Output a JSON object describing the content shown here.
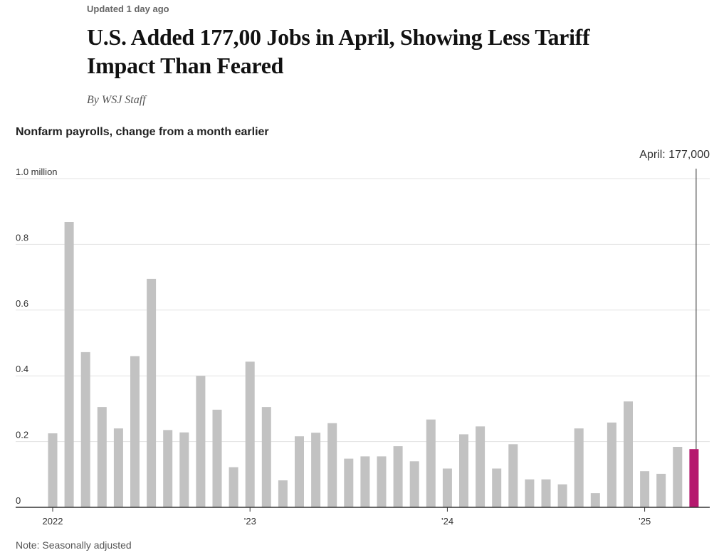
{
  "article": {
    "updated": "Updated 1 day ago",
    "headline": "U.S. Added 177,00 Jobs in April, Showing Less Tariff Impact Than Feared",
    "byline": "By WSJ Staff"
  },
  "chart_data": {
    "type": "bar",
    "title": "Nonfarm payrolls, change from a month earlier",
    "ylabel": "",
    "xlabel": "",
    "unit": "million",
    "ylim": [
      0,
      1.0
    ],
    "y_ticks": [
      {
        "value": 0,
        "label": "0"
      },
      {
        "value": 0.2,
        "label": "0.2"
      },
      {
        "value": 0.4,
        "label": "0.4"
      },
      {
        "value": 0.6,
        "label": "0.6"
      },
      {
        "value": 0.8,
        "label": "0.8"
      },
      {
        "value": 1.0,
        "label": "1.0 million"
      }
    ],
    "grid": true,
    "categories": [
      "2022-01",
      "2022-02",
      "2022-03",
      "2022-04",
      "2022-05",
      "2022-06",
      "2022-07",
      "2022-08",
      "2022-09",
      "2022-10",
      "2022-11",
      "2022-12",
      "2023-01",
      "2023-02",
      "2023-03",
      "2023-04",
      "2023-05",
      "2023-06",
      "2023-07",
      "2023-08",
      "2023-09",
      "2023-10",
      "2023-11",
      "2023-12",
      "2024-01",
      "2024-02",
      "2024-03",
      "2024-04",
      "2024-05",
      "2024-06",
      "2024-07",
      "2024-08",
      "2024-09",
      "2024-10",
      "2024-11",
      "2024-12",
      "2025-01",
      "2025-02",
      "2025-03",
      "2025-04"
    ],
    "values": [
      0.225,
      0.868,
      0.472,
      0.305,
      0.24,
      0.46,
      0.695,
      0.235,
      0.228,
      0.4,
      0.297,
      0.122,
      0.443,
      0.305,
      0.082,
      0.216,
      0.227,
      0.256,
      0.148,
      0.155,
      0.155,
      0.186,
      0.14,
      0.267,
      0.118,
      0.222,
      0.246,
      0.118,
      0.192,
      0.085,
      0.085,
      0.07,
      0.24,
      0.043,
      0.258,
      0.322,
      0.11,
      0.102,
      0.184,
      0.177
    ],
    "x_ticks": [
      {
        "category": "2022-01",
        "label": "2022"
      },
      {
        "category": "2023-01",
        "label": "’23"
      },
      {
        "category": "2024-01",
        "label": "’24"
      },
      {
        "category": "2025-01",
        "label": "’25"
      }
    ],
    "colors": {
      "bar": "#c2c2c2",
      "highlight": "#b5196e",
      "grid": "#e3e3e3",
      "axis": "#333333"
    },
    "highlight": {
      "category": "2025-04",
      "label": "April: 177,000"
    },
    "note": "Note: Seasonally adjusted"
  }
}
